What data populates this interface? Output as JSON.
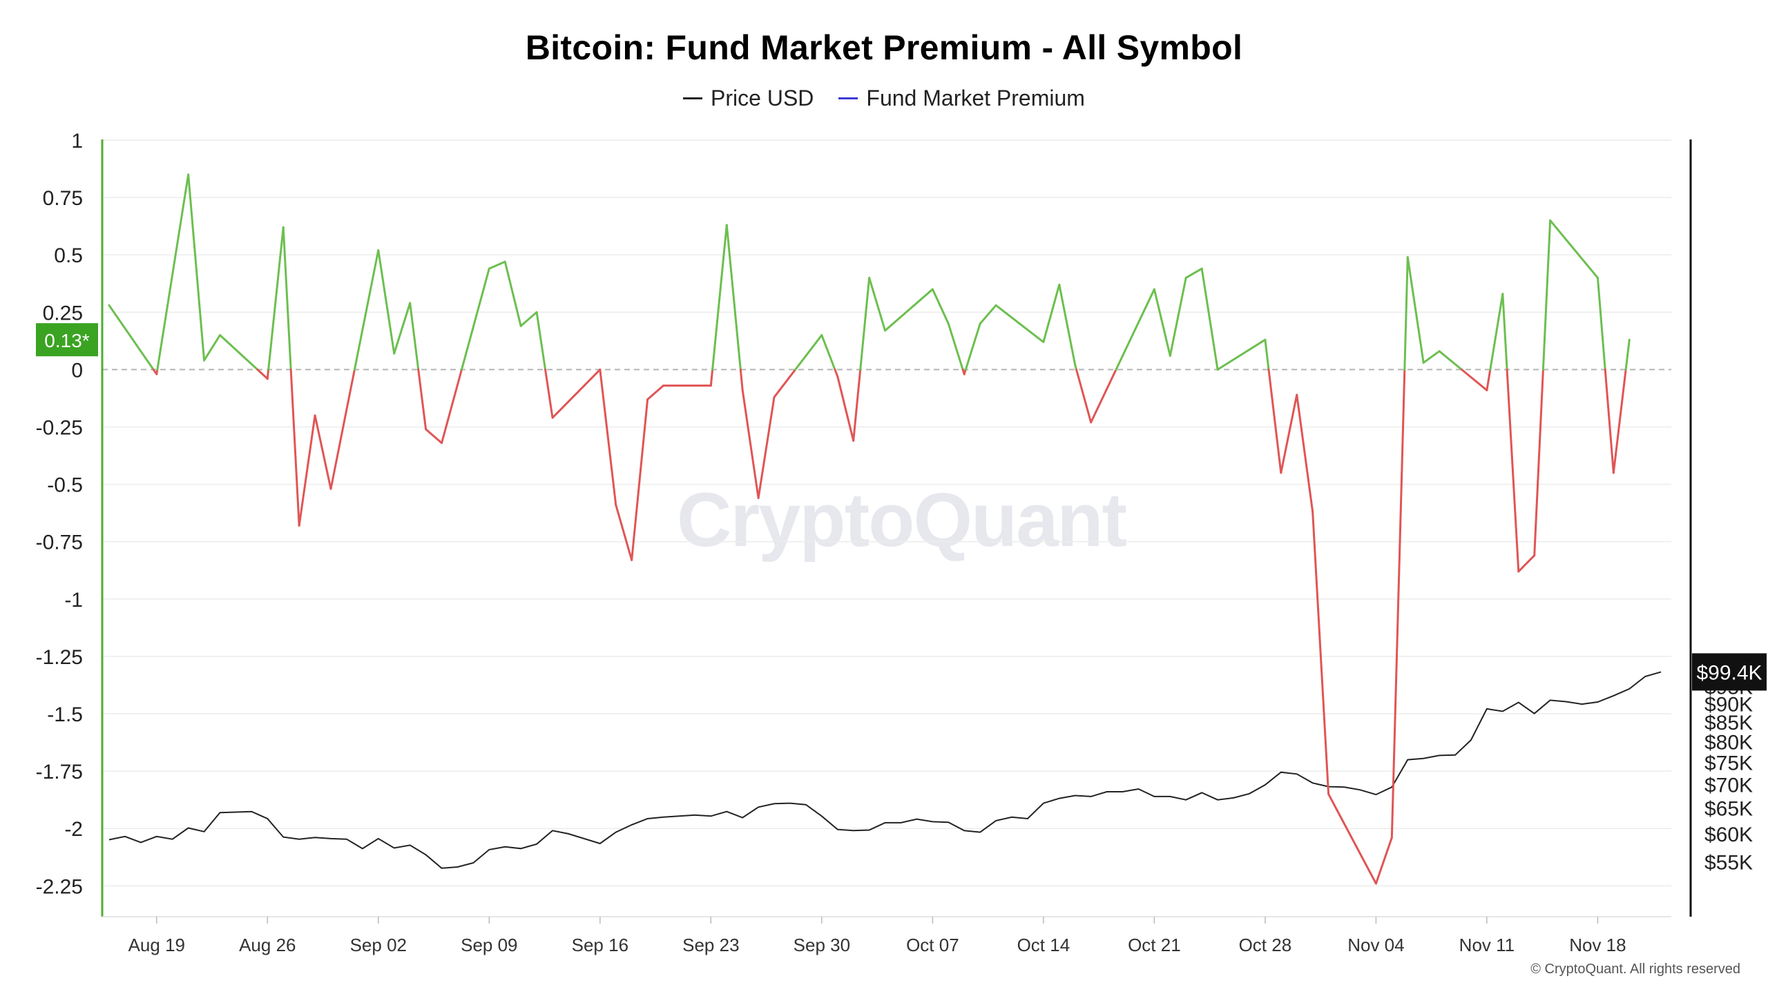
{
  "title": "Bitcoin: Fund Market Premium - All Symbol",
  "watermark": "CryptoQuant",
  "copyright": "© CryptoQuant. All rights reserved",
  "colors": {
    "positive": "#6cbf4f",
    "negative": "#e05555",
    "price_line": "#222222",
    "legend_premium": "#3a3ad6",
    "left_axis": "#4caf2f",
    "current_badge_bg": "#3aa321",
    "price_badge_bg": "#111111",
    "grid": "#ececec",
    "zero_line": "#b5b5b5"
  },
  "chart_data": {
    "type": "line",
    "title": "Bitcoin: Fund Market Premium - All Symbol",
    "legend": [
      "Price USD",
      "Fund Market Premium"
    ],
    "legend_position": "top-center",
    "grid": true,
    "x_start": "2024-08-16",
    "x_end": "2024-11-22",
    "x_ticks": [
      "Aug 19",
      "Aug 26",
      "Sep 02",
      "Sep 09",
      "Sep 16",
      "Sep 23",
      "Sep 30",
      "Oct 07",
      "Oct 14",
      "Oct 21",
      "Oct 28",
      "Nov 04",
      "Nov 11",
      "Nov 18"
    ],
    "x_tick_dates": [
      "2024-08-19",
      "2024-08-26",
      "2024-09-02",
      "2024-09-09",
      "2024-09-16",
      "2024-09-23",
      "2024-09-30",
      "2024-10-07",
      "2024-10-14",
      "2024-10-21",
      "2024-10-28",
      "2024-11-04",
      "2024-11-11",
      "2024-11-18"
    ],
    "y_left": {
      "ticks": [
        "1",
        "0.75",
        "0.5",
        "0.25",
        "0",
        "-0.25",
        "-0.5",
        "-0.75",
        "-1",
        "-1.25",
        "-1.5",
        "-1.75",
        "-2",
        "-2.25"
      ],
      "range": [
        -2.4,
        1
      ],
      "current_label": "0.13*"
    },
    "y_right": {
      "ticks": [
        "$95K",
        "$90K",
        "$85K",
        "$80K",
        "$75K",
        "$70K",
        "$65K",
        "$60K",
        "$55K"
      ],
      "tick_values": [
        95000,
        90000,
        85000,
        80000,
        75000,
        70000,
        65000,
        60000,
        55000
      ],
      "scale": "log",
      "range": [
        52500,
        102500
      ],
      "current_label": "$99.4K"
    },
    "series": [
      {
        "name": "Fund Market Premium",
        "axis": "left",
        "coloring": "green above 0, red below 0",
        "points": [
          [
            "2024-08-16",
            0.28
          ],
          [
            "2024-08-19",
            -0.02
          ],
          [
            "2024-08-21",
            0.85
          ],
          [
            "2024-08-22",
            0.04
          ],
          [
            "2024-08-23",
            0.15
          ],
          [
            "2024-08-26",
            -0.04
          ],
          [
            "2024-08-27",
            0.62
          ],
          [
            "2024-08-28",
            -0.68
          ],
          [
            "2024-08-29",
            -0.2
          ],
          [
            "2024-08-30",
            -0.52
          ],
          [
            "2024-09-02",
            0.52
          ],
          [
            "2024-09-03",
            0.07
          ],
          [
            "2024-09-04",
            0.29
          ],
          [
            "2024-09-05",
            -0.26
          ],
          [
            "2024-09-06",
            -0.32
          ],
          [
            "2024-09-09",
            0.44
          ],
          [
            "2024-09-10",
            0.47
          ],
          [
            "2024-09-11",
            0.19
          ],
          [
            "2024-09-12",
            0.25
          ],
          [
            "2024-09-13",
            -0.21
          ],
          [
            "2024-09-16",
            0.0
          ],
          [
            "2024-09-17",
            -0.59
          ],
          [
            "2024-09-18",
            -0.83
          ],
          [
            "2024-09-19",
            -0.13
          ],
          [
            "2024-09-20",
            -0.07
          ],
          [
            "2024-09-23",
            -0.07
          ],
          [
            "2024-09-24",
            0.63
          ],
          [
            "2024-09-25",
            -0.09
          ],
          [
            "2024-09-26",
            -0.56
          ],
          [
            "2024-09-27",
            -0.12
          ],
          [
            "2024-09-30",
            0.15
          ],
          [
            "2024-10-01",
            -0.03
          ],
          [
            "2024-10-02",
            -0.31
          ],
          [
            "2024-10-03",
            0.4
          ],
          [
            "2024-10-04",
            0.17
          ],
          [
            "2024-10-07",
            0.35
          ],
          [
            "2024-10-08",
            0.2
          ],
          [
            "2024-10-09",
            -0.02
          ],
          [
            "2024-10-10",
            0.2
          ],
          [
            "2024-10-11",
            0.28
          ],
          [
            "2024-10-14",
            0.12
          ],
          [
            "2024-10-15",
            0.37
          ],
          [
            "2024-10-16",
            0.02
          ],
          [
            "2024-10-17",
            -0.23
          ],
          [
            "2024-10-21",
            0.35
          ],
          [
            "2024-10-22",
            0.06
          ],
          [
            "2024-10-23",
            0.4
          ],
          [
            "2024-10-24",
            0.44
          ],
          [
            "2024-10-25",
            0.0
          ],
          [
            "2024-10-28",
            0.13
          ],
          [
            "2024-10-29",
            -0.45
          ],
          [
            "2024-10-30",
            -0.11
          ],
          [
            "2024-10-31",
            -0.62
          ],
          [
            "2024-11-01",
            -1.85
          ],
          [
            "2024-11-04",
            -2.24
          ],
          [
            "2024-11-05",
            -2.04
          ],
          [
            "2024-11-06",
            0.49
          ],
          [
            "2024-11-07",
            0.03
          ],
          [
            "2024-11-08",
            0.08
          ],
          [
            "2024-11-11",
            -0.09
          ],
          [
            "2024-11-12",
            0.33
          ],
          [
            "2024-11-13",
            -0.88
          ],
          [
            "2024-11-14",
            -0.81
          ],
          [
            "2024-11-15",
            0.65
          ],
          [
            "2024-11-18",
            0.4
          ],
          [
            "2024-11-19",
            -0.45
          ],
          [
            "2024-11-20",
            0.13
          ]
        ]
      },
      {
        "name": "Price USD",
        "axis": "right",
        "points": [
          [
            "2024-08-16",
            58900
          ],
          [
            "2024-08-17",
            59500
          ],
          [
            "2024-08-18",
            58400
          ],
          [
            "2024-08-19",
            59500
          ],
          [
            "2024-08-20",
            59000
          ],
          [
            "2024-08-21",
            61100
          ],
          [
            "2024-08-22",
            60400
          ],
          [
            "2024-08-23",
            64100
          ],
          [
            "2024-08-25",
            64300
          ],
          [
            "2024-08-26",
            62900
          ],
          [
            "2024-08-27",
            59400
          ],
          [
            "2024-08-28",
            59000
          ],
          [
            "2024-08-29",
            59300
          ],
          [
            "2024-08-30",
            59100
          ],
          [
            "2024-08-31",
            59000
          ],
          [
            "2024-09-01",
            57300
          ],
          [
            "2024-09-02",
            59100
          ],
          [
            "2024-09-03",
            57400
          ],
          [
            "2024-09-04",
            57900
          ],
          [
            "2024-09-05",
            56200
          ],
          [
            "2024-09-06",
            53900
          ],
          [
            "2024-09-07",
            54100
          ],
          [
            "2024-09-08",
            54800
          ],
          [
            "2024-09-09",
            57100
          ],
          [
            "2024-09-10",
            57600
          ],
          [
            "2024-09-11",
            57300
          ],
          [
            "2024-09-12",
            58100
          ],
          [
            "2024-09-13",
            60600
          ],
          [
            "2024-09-14",
            60000
          ],
          [
            "2024-09-16",
            58200
          ],
          [
            "2024-09-17",
            60300
          ],
          [
            "2024-09-18",
            61700
          ],
          [
            "2024-09-19",
            62900
          ],
          [
            "2024-09-20",
            63200
          ],
          [
            "2024-09-22",
            63600
          ],
          [
            "2024-09-23",
            63400
          ],
          [
            "2024-09-24",
            64300
          ],
          [
            "2024-09-25",
            63100
          ],
          [
            "2024-09-26",
            65200
          ],
          [
            "2024-09-27",
            65900
          ],
          [
            "2024-09-28",
            66000
          ],
          [
            "2024-09-29",
            65700
          ],
          [
            "2024-09-30",
            63400
          ],
          [
            "2024-10-01",
            60800
          ],
          [
            "2024-10-02",
            60600
          ],
          [
            "2024-10-03",
            60700
          ],
          [
            "2024-10-04",
            62100
          ],
          [
            "2024-10-05",
            62100
          ],
          [
            "2024-10-06",
            62800
          ],
          [
            "2024-10-07",
            62300
          ],
          [
            "2024-10-08",
            62200
          ],
          [
            "2024-10-09",
            60600
          ],
          [
            "2024-10-10",
            60300
          ],
          [
            "2024-10-11",
            62500
          ],
          [
            "2024-10-12",
            63200
          ],
          [
            "2024-10-13",
            62900
          ],
          [
            "2024-10-14",
            66000
          ],
          [
            "2024-10-15",
            67000
          ],
          [
            "2024-10-16",
            67600
          ],
          [
            "2024-10-17",
            67400
          ],
          [
            "2024-10-18",
            68400
          ],
          [
            "2024-10-19",
            68400
          ],
          [
            "2024-10-20",
            69000
          ],
          [
            "2024-10-21",
            67400
          ],
          [
            "2024-10-22",
            67400
          ],
          [
            "2024-10-23",
            66700
          ],
          [
            "2024-10-24",
            68200
          ],
          [
            "2024-10-25",
            66700
          ],
          [
            "2024-10-26",
            67100
          ],
          [
            "2024-10-27",
            68000
          ],
          [
            "2024-10-28",
            69900
          ],
          [
            "2024-10-29",
            72700
          ],
          [
            "2024-10-30",
            72300
          ],
          [
            "2024-10-31",
            70300
          ],
          [
            "2024-11-01",
            69500
          ],
          [
            "2024-11-02",
            69400
          ],
          [
            "2024-11-03",
            68800
          ],
          [
            "2024-11-04",
            67800
          ],
          [
            "2024-11-05",
            69400
          ],
          [
            "2024-11-06",
            75600
          ],
          [
            "2024-11-07",
            75900
          ],
          [
            "2024-11-08",
            76600
          ],
          [
            "2024-11-09",
            76700
          ],
          [
            "2024-11-10",
            80400
          ],
          [
            "2024-11-11",
            88600
          ],
          [
            "2024-11-12",
            87900
          ],
          [
            "2024-11-13",
            90400
          ],
          [
            "2024-11-14",
            87300
          ],
          [
            "2024-11-15",
            91000
          ],
          [
            "2024-11-16",
            90600
          ],
          [
            "2024-11-17",
            89900
          ],
          [
            "2024-11-18",
            90500
          ],
          [
            "2024-11-19",
            92300
          ],
          [
            "2024-11-20",
            94300
          ],
          [
            "2024-11-21",
            98000
          ],
          [
            "2024-11-22",
            99400
          ]
        ]
      }
    ]
  }
}
